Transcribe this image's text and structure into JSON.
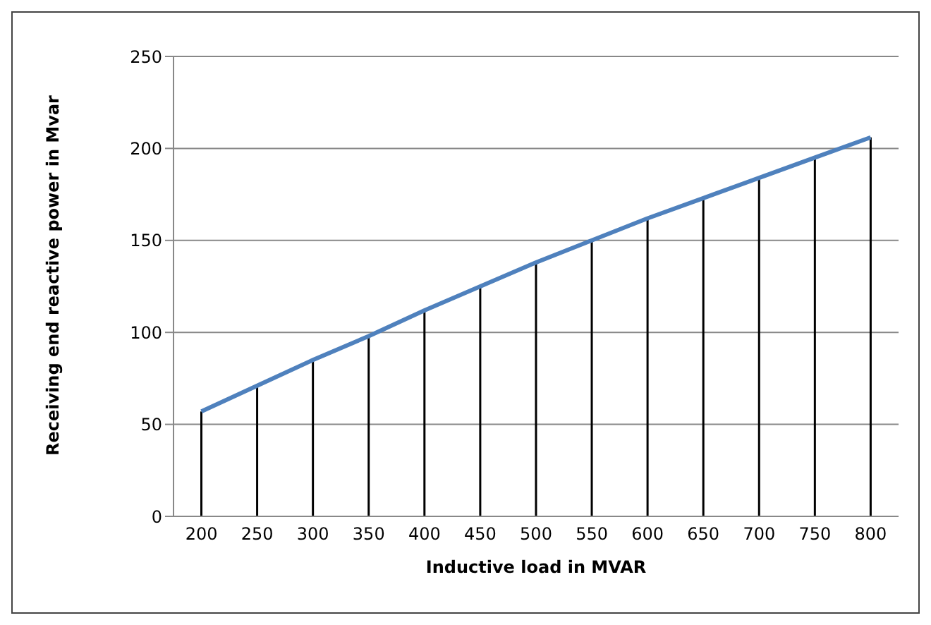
{
  "chart_data": {
    "type": "line",
    "xlabel": "Inductive  load in MVAR",
    "ylabel": "Receiving end reactive power in Mvar",
    "categories": [
      "200",
      "250",
      "300",
      "350",
      "400",
      "450",
      "500",
      "550",
      "600",
      "650",
      "700",
      "750",
      "800"
    ],
    "series": [
      {
        "type": "bar",
        "color": "#000000",
        "values": [
          57,
          71,
          85,
          98,
          112,
          125,
          138,
          150,
          162,
          173,
          184,
          195,
          206
        ]
      },
      {
        "color": "#4f81bd",
        "values": [
          57,
          71,
          85,
          98,
          112,
          125,
          138,
          150,
          162,
          173,
          184,
          195,
          206
        ]
      }
    ],
    "ylim": [
      0,
      250
    ],
    "yticks": [
      0,
      50,
      100,
      150,
      200,
      250
    ],
    "grid": "y",
    "marker": "none",
    "line_style": "solid",
    "legend": false
  }
}
